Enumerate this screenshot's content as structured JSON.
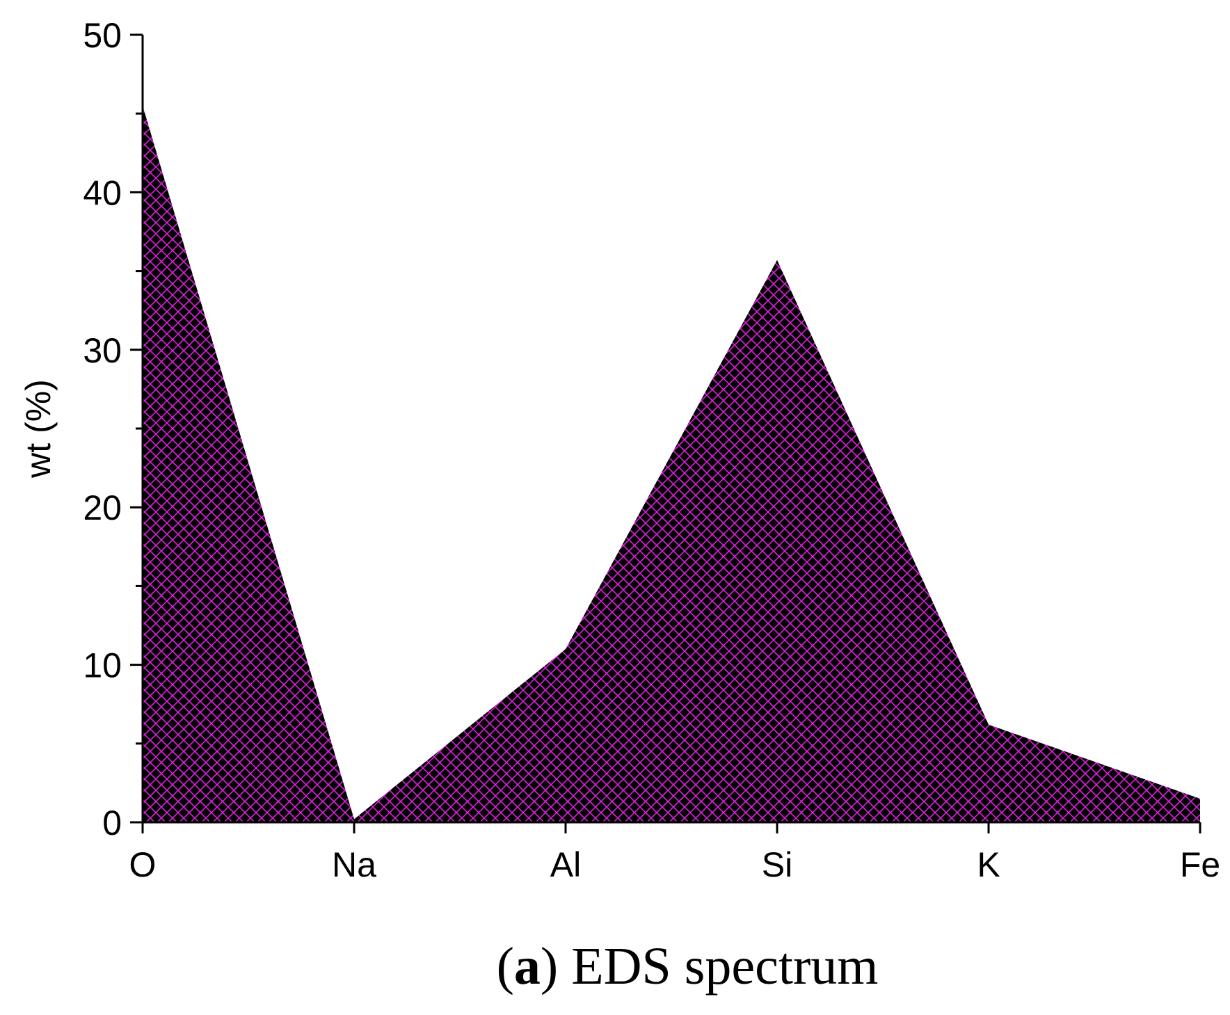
{
  "chart_data": {
    "type": "area",
    "categories": [
      "O",
      "Na",
      "Al",
      "Si",
      "K",
      "Fe"
    ],
    "series": [
      {
        "values": [
          45.5,
          0.2,
          11.0,
          35.7,
          6.2,
          1.5
        ]
      }
    ],
    "ylabel": "wt (%)",
    "xlabel": "",
    "ylim": [
      0,
      50
    ],
    "yticks": [
      0,
      10,
      20,
      30,
      40,
      50
    ],
    "grid": false,
    "legend": "none",
    "fill_color": "#000000",
    "hatch_color": "#e020e0",
    "hatch_style": "crosshatch"
  },
  "caption": {
    "letter": "a",
    "text": "EDS spectrum"
  }
}
